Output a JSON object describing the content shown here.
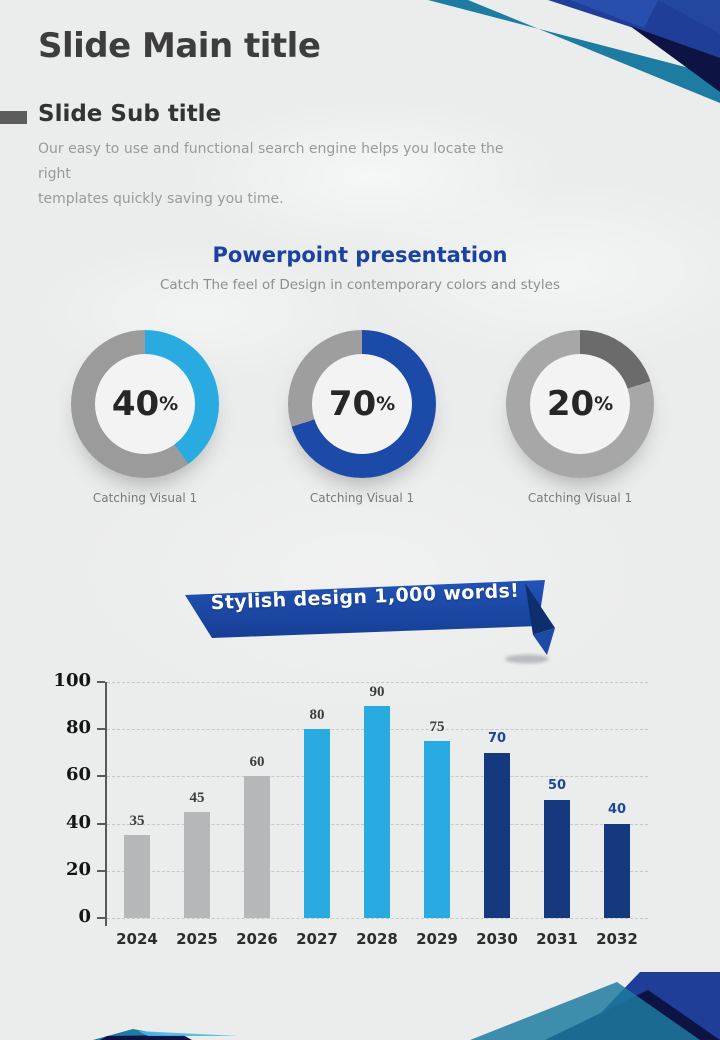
{
  "slide": {
    "main_title": "Slide Main title",
    "sub_title": "Slide Sub title",
    "description_lines": [
      "Our easy to use and functional search engine helps you locate the right",
      "templates quickly saving you time."
    ],
    "section": {
      "heading": "Powerpoint presentation",
      "subheading": "Catch The feel of Design in contemporary colors and styles"
    },
    "ribbon": {
      "text": "Stylish design 1,000 words!"
    }
  },
  "colors": {
    "accent_cyan": "#29abe2",
    "accent_blue": "#1c4aa9",
    "accent_navy": "#0d1343",
    "accent_teal": "#1e7ba1",
    "royal_blue": "#1e3e97",
    "heading_blue": "#1b42a1",
    "bar_gray": "#b5b7b9",
    "bar_navy": "#16387e",
    "title_gray": "#3d3d3d",
    "body_text_gray": "#9a9a9a"
  },
  "chart_data": [
    {
      "type": "donut",
      "items": [
        {
          "value": 40,
          "display": "40",
          "suffix": "%",
          "caption": "Catching Visual 1",
          "color": "#29abe2",
          "track": "#9b9b9b"
        },
        {
          "value": 70,
          "display": "70",
          "suffix": "%",
          "caption": "Catching Visual 1",
          "color": "#1c4aa9",
          "track": "#9e9e9e"
        },
        {
          "value": 20,
          "display": "20",
          "suffix": "%",
          "caption": "Catching Visual 1",
          "color": "#6b6b6b",
          "track": "#a7a7a7"
        }
      ]
    },
    {
      "type": "bar",
      "title": "",
      "xlabel": "",
      "ylabel": "",
      "categories": [
        "2024",
        "2025",
        "2026",
        "2027",
        "2028",
        "2029",
        "2030",
        "2031",
        "2032"
      ],
      "values": [
        35,
        45,
        60,
        80,
        90,
        75,
        70,
        50,
        40
      ],
      "bar_colors": [
        "#b5b7b9",
        "#b5b7b9",
        "#b5b7b9",
        "#29abe2",
        "#29abe2",
        "#29abe2",
        "#16387e",
        "#16387e",
        "#16387e"
      ],
      "value_label_styles": [
        "serif",
        "serif",
        "serif",
        "serif",
        "serif",
        "serif",
        "blue",
        "blue",
        "blue"
      ],
      "ylim": [
        0,
        100
      ],
      "yticks": [
        0,
        20,
        40,
        60,
        80,
        100
      ],
      "grid": "dashed-horizontal",
      "legend": "none"
    }
  ]
}
